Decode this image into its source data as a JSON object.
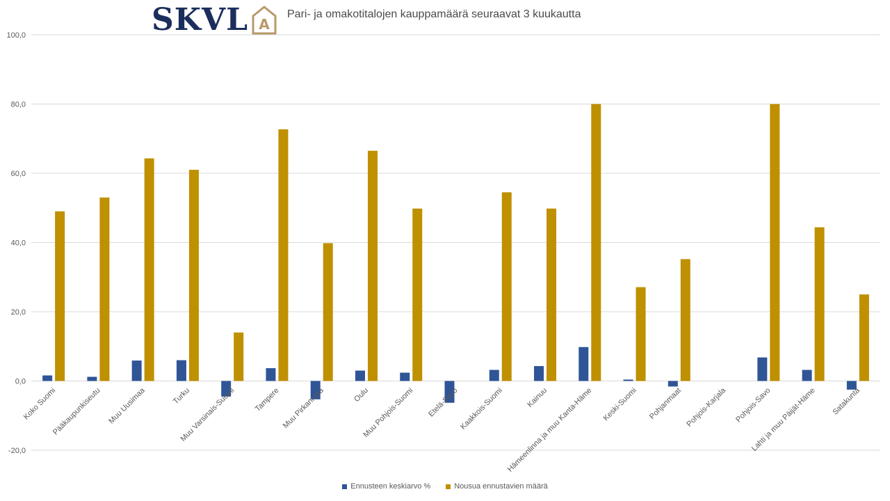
{
  "logo": {
    "text": "SKVL",
    "mark": "A",
    "text_color": "#1b2e5c",
    "mark_color": "#b8996a"
  },
  "chart_data": {
    "type": "bar",
    "title": "Pari- ja omakotitalojen kauppamäärä seuraavat 3 kuukautta",
    "xlabel": "",
    "ylabel": "",
    "ylim": [
      -20,
      100
    ],
    "yticks": [
      "-20,0",
      "0,0",
      "20,0",
      "40,0",
      "60,0",
      "80,0",
      "100,0"
    ],
    "grid": true,
    "legend_position": "bottom",
    "categories": [
      "Koko Suomi",
      "Pääkaupunkiseutu",
      "Muu Uusimaa",
      "Turku",
      "Muu Varsinais-Suomi",
      "Tampere",
      "Muu Pirkanmaa",
      "Oulu",
      "Muu Pohjois-Suomi",
      "Etelä-Savo",
      "Kaakkois-Suomi",
      "Kainuu",
      "Hämeenlinna ja muu Kanta-Häme",
      "Keski-Suomi",
      "Pohjanmaat",
      "Pohjois-Karjala",
      "Pohjois-Savo",
      "Lahti ja muu Päijät-Häme",
      "Satakunta"
    ],
    "series": [
      {
        "name": "Ennusteen keskiarvo %",
        "color": "#2f5597",
        "values": [
          1.6,
          1.2,
          5.9,
          6.0,
          -4.5,
          3.7,
          -5.3,
          3.0,
          2.4,
          -6.3,
          3.2,
          4.3,
          9.8,
          0.4,
          -1.6,
          0,
          6.8,
          3.2,
          -2.5
        ]
      },
      {
        "name": "Nousua ennustavien määrä",
        "color": "#bf9000",
        "values": [
          49.0,
          53.0,
          64.3,
          61.0,
          14.0,
          72.7,
          39.8,
          66.5,
          49.8,
          0,
          54.5,
          49.8,
          80.0,
          27.1,
          35.2,
          0,
          80.0,
          44.4,
          25.0
        ]
      }
    ]
  }
}
